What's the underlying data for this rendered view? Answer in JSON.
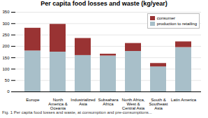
{
  "chart_data": {
    "type": "bar",
    "title": "Per capita food losses and waste (kg/year)",
    "caption": "Fig. 1  Per capita food losses and waste, at consumption and pre-consumptions...",
    "categories": [
      "Europe",
      "North\nAmerica &\nOceania",
      "Industrialized\nAsia",
      "Subsahara\nAfrica",
      "North Africa,\nWest &\nCentral Asia",
      "South &\nSoutheast\nAsia",
      "Latin America"
    ],
    "series": [
      {
        "name": "production to retailing",
        "color": "#a8bfc9",
        "values": [
          180,
          175,
          160,
          158,
          178,
          110,
          195
        ]
      },
      {
        "name": "consumer",
        "color": "#993333",
        "values": [
          100,
          122,
          75,
          8,
          35,
          15,
          25
        ]
      }
    ],
    "stacked": true,
    "ylim": [
      0,
      350
    ],
    "yticks": [
      0,
      50,
      100,
      150,
      200,
      250,
      300,
      350
    ],
    "grid": true,
    "legend": "upper right"
  }
}
